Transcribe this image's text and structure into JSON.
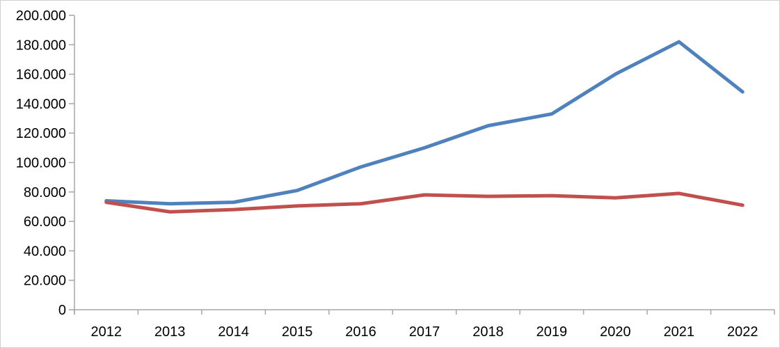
{
  "chart_data": {
    "type": "line",
    "title": "",
    "xlabel": "",
    "ylabel": "",
    "x": [
      "2012",
      "2013",
      "2014",
      "2015",
      "2016",
      "2017",
      "2018",
      "2019",
      "2020",
      "2021",
      "2022"
    ],
    "series": [
      {
        "name": "blue-series",
        "color": "#4F81BD",
        "values": [
          74000,
          72000,
          73000,
          81000,
          97000,
          110000,
          125000,
          133000,
          160000,
          182000,
          148000
        ]
      },
      {
        "name": "red-series",
        "color": "#C0504D",
        "values": [
          73000,
          66500,
          68000,
          70500,
          72000,
          78000,
          77000,
          77500,
          76000,
          79000,
          71000
        ]
      }
    ],
    "ylim": [
      0,
      200000
    ],
    "ytick_step": 20000,
    "ytick_labels": [
      "0",
      "20.000",
      "40.000",
      "60.000",
      "80.000",
      "100.000",
      "120.000",
      "140.000",
      "160.000",
      "180.000",
      "200.000"
    ],
    "grid": false,
    "legend": "none",
    "number_format": "thousands-dot",
    "axis_color": "#A6A6A6",
    "text_color": "#000000",
    "background": "#FFFFFF",
    "line_width": 5
  }
}
